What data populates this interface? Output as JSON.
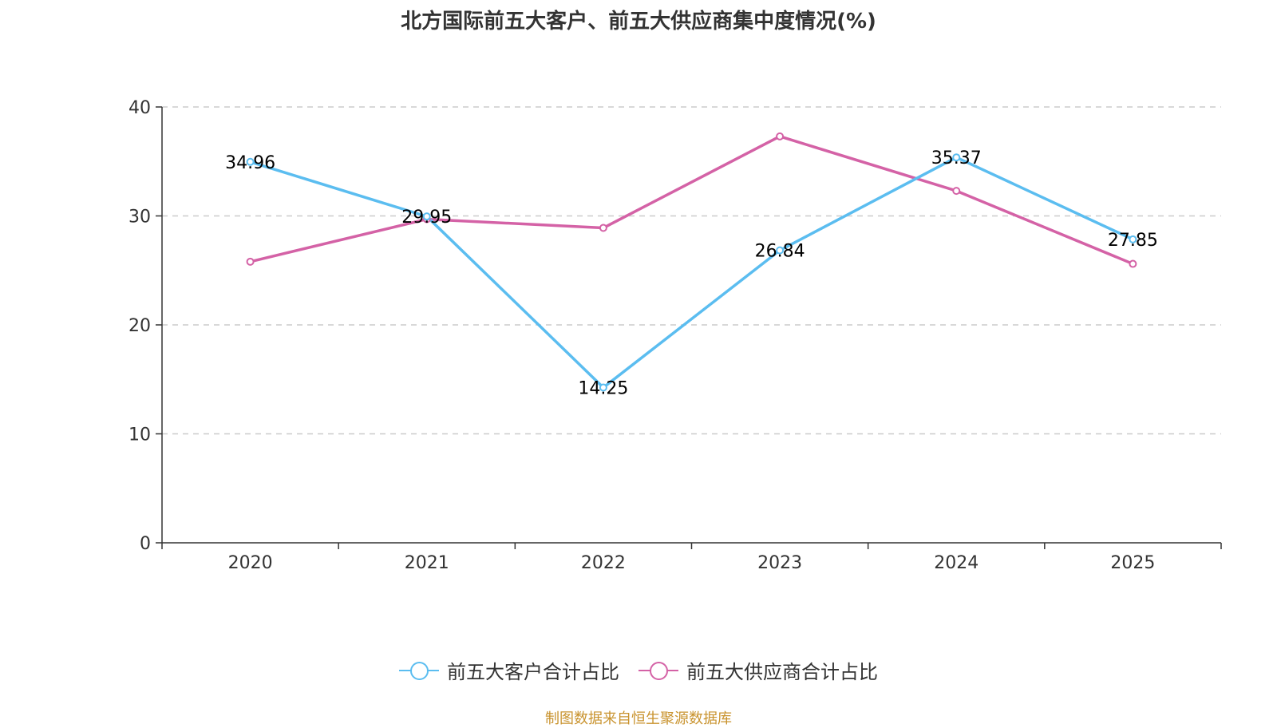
{
  "chart_data": {
    "type": "line",
    "title": "北方国际前五大客户、前五大供应商集中度情况(%)",
    "categories": [
      "2020",
      "2021",
      "2022",
      "2023",
      "2024",
      "2025"
    ],
    "ylim": [
      0,
      40
    ],
    "yticks": [
      0,
      10,
      20,
      30,
      40
    ],
    "grid": true,
    "legend_position": "bottom-center",
    "series": [
      {
        "name": "前五大客户合计占比",
        "color": "#5bbdf0",
        "values": [
          34.96,
          29.95,
          14.25,
          26.84,
          35.37,
          27.85
        ],
        "labels": [
          "34.96",
          "29.95",
          "14.25",
          "26.84",
          "35.37",
          "27.85"
        ]
      },
      {
        "name": "前五大供应商合计占比",
        "color": "#d462a6",
        "values": [
          25.8,
          29.7,
          28.9,
          37.3,
          32.3,
          25.6
        ]
      }
    ]
  },
  "source": "制图数据来自恒生聚源数据库"
}
